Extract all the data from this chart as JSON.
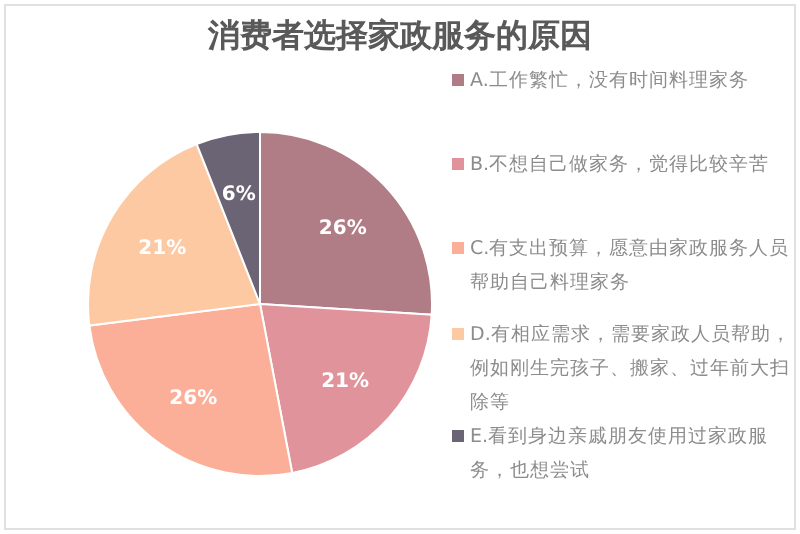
{
  "chart_data": {
    "type": "pie",
    "title": "消费者选择家政服务的原因",
    "categories": [
      "A.工作繁忙，没有时间料理家务",
      "B.不想自己做家务，觉得比较辛苦",
      "C.有支出预算，愿意由家政服务人员帮助自己料理家务",
      "D.有相应需求，需要家政人员帮助，例如刚生完孩子、搬家、过年前大扫除等",
      "E.看到身边亲戚朋友使用过家政服务，也想尝试"
    ],
    "values": [
      26,
      21,
      26,
      21,
      6
    ],
    "colors": [
      "#b07c86",
      "#e0939a",
      "#fbaf98",
      "#fdc9a3",
      "#6b6474"
    ],
    "value_labels": [
      "26%",
      "21%",
      "26%",
      "21%",
      "6%"
    ],
    "legend": "right"
  }
}
